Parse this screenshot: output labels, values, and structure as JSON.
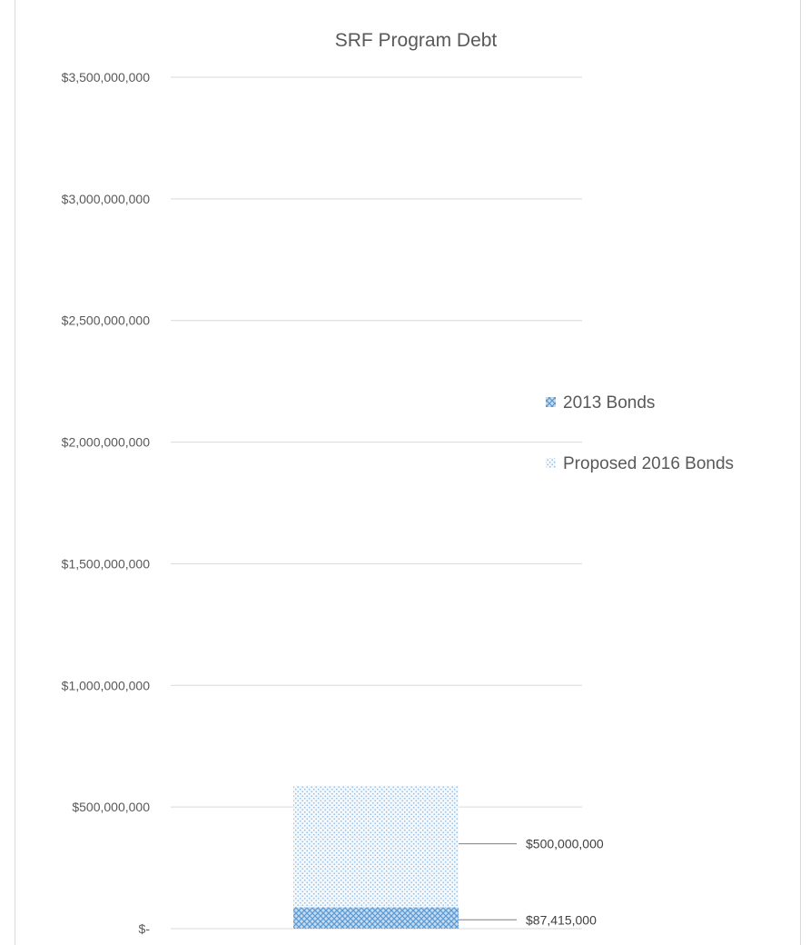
{
  "chart_data": {
    "type": "bar",
    "stacked": true,
    "title": "SRF Program Debt",
    "xlabel": "",
    "ylabel": "",
    "categories": [
      ""
    ],
    "ylim": [
      0,
      3500000000
    ],
    "y_ticks": [
      0,
      500000000,
      1000000000,
      1500000000,
      2000000000,
      2500000000,
      3000000000,
      3500000000
    ],
    "y_tick_labels": [
      "$-",
      "$500,000,000",
      "$1,000,000,000",
      "$1,500,000,000",
      "$2,000,000,000",
      "$2,500,000,000",
      "$3,000,000,000",
      "$3,500,000,000"
    ],
    "grid": true,
    "legend_position": "right",
    "series": [
      {
        "name": "2013 Bonds",
        "values": [
          87415000
        ],
        "data_labels": [
          "$87,415,000"
        ],
        "color": "#5b9bd5",
        "pattern": "dense-crosshatch"
      },
      {
        "name": "Proposed 2016 Bonds",
        "values": [
          500000000
        ],
        "data_labels": [
          "$500,000,000"
        ],
        "color": "#9dc3e6",
        "pattern": "sparse-dots"
      }
    ]
  }
}
